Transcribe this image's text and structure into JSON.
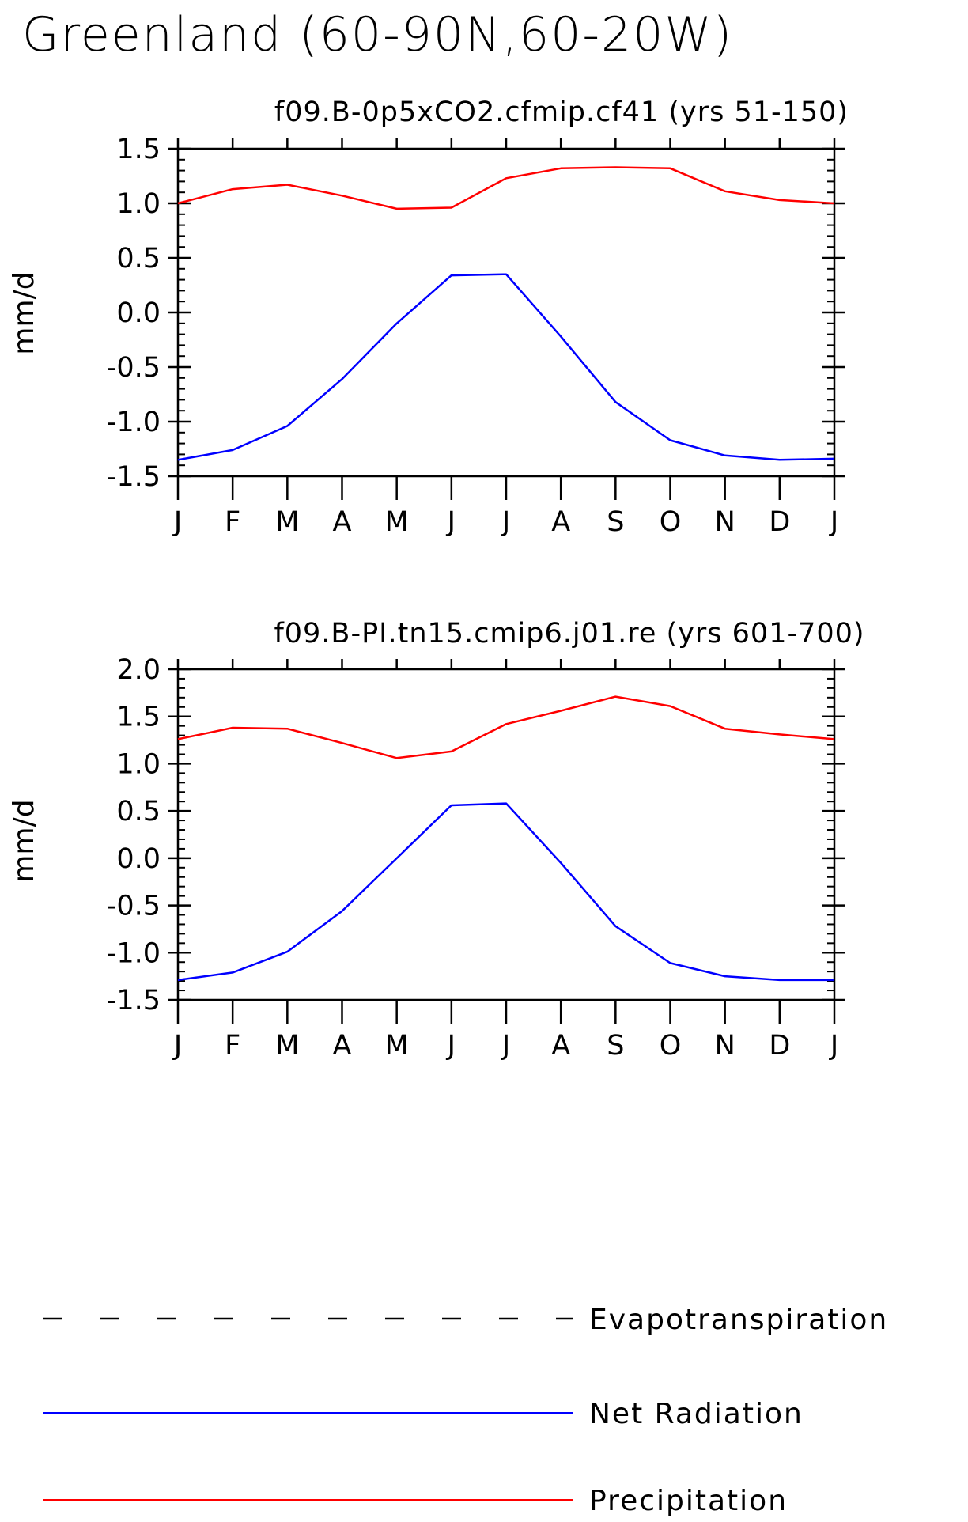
{
  "figure": {
    "title": "Greenland (60-90N,60-20W)"
  },
  "chart_data": [
    {
      "type": "line",
      "title": "f09.B-0p5xCO2.cfmip.cf41 (yrs 51-150)",
      "xlabel": "",
      "ylabel": "mm/d",
      "categories": [
        "J",
        "F",
        "M",
        "A",
        "M",
        "J",
        "J",
        "A",
        "S",
        "O",
        "N",
        "D",
        "J"
      ],
      "ylim": [
        -1.5,
        1.5
      ],
      "yticks": [
        -1.5,
        -1.0,
        -0.5,
        0.0,
        0.5,
        1.0,
        1.5
      ],
      "ytick_labels": [
        "-1.5",
        "-1.0",
        "-0.5",
        "0.0",
        "0.5",
        "1.0",
        "1.5"
      ],
      "minor_step": 0.1,
      "grid": false,
      "series": [
        {
          "name": "Precipitation",
          "color": "#ff0000",
          "values": [
            1.0,
            1.13,
            1.17,
            1.07,
            0.95,
            0.96,
            1.23,
            1.32,
            1.33,
            1.32,
            1.11,
            1.03,
            1.0
          ]
        },
        {
          "name": "Net Radiation",
          "color": "#0000ff",
          "values": [
            -1.35,
            -1.26,
            -1.04,
            -0.61,
            -0.1,
            0.34,
            0.35,
            -0.22,
            -0.82,
            -1.17,
            -1.31,
            -1.35,
            -1.34
          ]
        }
      ]
    },
    {
      "type": "line",
      "title": "f09.B-PI.tn15.cmip6.j01.re (yrs 601-700)",
      "xlabel": "",
      "ylabel": "mm/d",
      "categories": [
        "J",
        "F",
        "M",
        "A",
        "M",
        "J",
        "J",
        "A",
        "S",
        "O",
        "N",
        "D",
        "J"
      ],
      "ylim": [
        -1.5,
        2.0
      ],
      "yticks": [
        -1.5,
        -1.0,
        -0.5,
        0.0,
        0.5,
        1.0,
        1.5,
        2.0
      ],
      "ytick_labels": [
        "-1.5",
        "-1.0",
        "-0.5",
        "0.0",
        "0.5",
        "1.0",
        "1.5",
        "2.0"
      ],
      "minor_step": 0.1,
      "grid": false,
      "series": [
        {
          "name": "Precipitation",
          "color": "#ff0000",
          "values": [
            1.26,
            1.38,
            1.37,
            1.22,
            1.06,
            1.13,
            1.42,
            1.56,
            1.71,
            1.61,
            1.37,
            1.31,
            1.26
          ]
        },
        {
          "name": "Net Radiation",
          "color": "#0000ff",
          "values": [
            -1.29,
            -1.21,
            -0.99,
            -0.56,
            0.0,
            0.56,
            0.58,
            -0.05,
            -0.72,
            -1.11,
            -1.25,
            -1.29,
            -1.29
          ]
        }
      ]
    }
  ],
  "legend": {
    "placement": "bottom",
    "items": [
      {
        "label": "Evapotranspiration",
        "color": "#000000",
        "style": "dashed"
      },
      {
        "label": "Net Radiation",
        "color": "#0000ff",
        "style": "solid"
      },
      {
        "label": "Precipitation",
        "color": "#ff0000",
        "style": "solid"
      }
    ]
  }
}
